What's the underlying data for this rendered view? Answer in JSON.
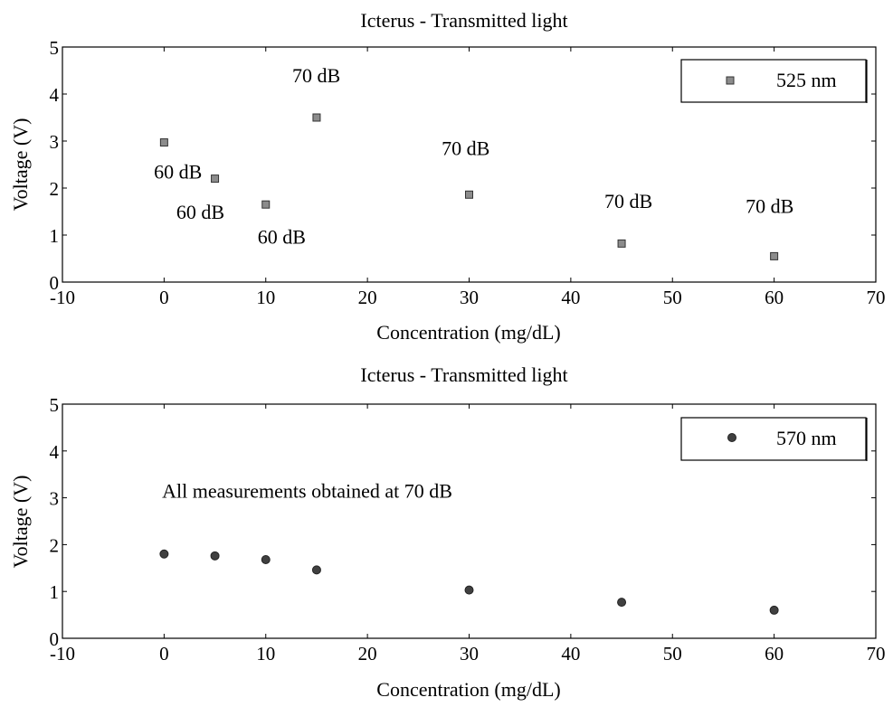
{
  "chart_data": [
    {
      "type": "scatter",
      "title": "Icterus - Transmitted light",
      "xlabel": "Concentration (mg/dL)",
      "ylabel": "Voltage (V)",
      "xlim": [
        -10,
        70
      ],
      "ylim": [
        0,
        5
      ],
      "xticks": [
        "-10",
        "0",
        "10",
        "20",
        "30",
        "40",
        "50",
        "60",
        "70"
      ],
      "yticks": [
        "0",
        "1",
        "2",
        "3",
        "4",
        "5"
      ],
      "grid": false,
      "legend_position": "top-right",
      "marker": "square",
      "marker_color": "#8c8c8c",
      "series": [
        {
          "name": "525 nm",
          "x": [
            0,
            5,
            10,
            15,
            30,
            45,
            60
          ],
          "y": [
            2.97,
            2.2,
            1.65,
            3.5,
            1.86,
            0.82,
            0.55
          ]
        }
      ],
      "annotations": [
        {
          "text": "60 dB",
          "x": -1,
          "y": 2.2
        },
        {
          "text": "60 dB",
          "x": 1.2,
          "y": 1.35
        },
        {
          "text": "60 dB",
          "x": 9.2,
          "y": 0.82
        },
        {
          "text": "70 dB",
          "x": 12.6,
          "y": 4.25
        },
        {
          "text": "70 dB",
          "x": 27.3,
          "y": 2.7
        },
        {
          "text": "70 dB",
          "x": 43.3,
          "y": 1.58
        },
        {
          "text": "70 dB",
          "x": 57.2,
          "y": 1.47
        }
      ]
    },
    {
      "type": "scatter",
      "title": "Icterus - Transmitted light",
      "xlabel": "Concentration (mg/dL)",
      "ylabel": "Voltage (V)",
      "xlim": [
        -10,
        70
      ],
      "ylim": [
        0,
        5
      ],
      "xticks": [
        "-10",
        "0",
        "10",
        "20",
        "30",
        "40",
        "50",
        "60",
        "70"
      ],
      "yticks": [
        "0",
        "1",
        "2",
        "3",
        "4",
        "5"
      ],
      "grid": false,
      "legend_position": "top-right",
      "marker": "circle",
      "marker_color": "#404040",
      "series": [
        {
          "name": "570 nm",
          "x": [
            0,
            5,
            10,
            15,
            30,
            45,
            60
          ],
          "y": [
            1.8,
            1.76,
            1.68,
            1.46,
            1.03,
            0.77,
            0.6
          ]
        }
      ],
      "annotations": [
        {
          "text": "All measurements obtained at 70 dB",
          "x": -0.2,
          "y": 3.0
        }
      ]
    }
  ]
}
